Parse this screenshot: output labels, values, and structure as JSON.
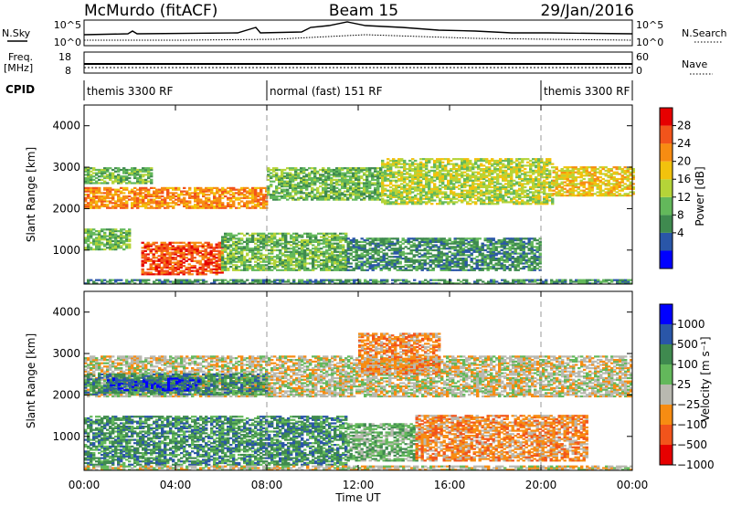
{
  "header": {
    "station": "McMurdo (fitACF)",
    "beam": "Beam 15",
    "date": "29/Jan/2016"
  },
  "top_panels": {
    "nsky_label": "N.Sky",
    "nsearch_label": "N.Search",
    "nsky_ticks": [
      "10^5",
      "10^0"
    ],
    "nsearch_ticks": [
      "10^5",
      "10^0"
    ],
    "freq_label": "Freq.",
    "freq_unit": "[MHz]",
    "freq_ticks": [
      "18",
      "8"
    ],
    "nave_label": "Nave",
    "nave_ticks": [
      "60",
      "0"
    ],
    "cpid_label": "CPID",
    "cpid_segments": [
      {
        "label": "themis 3300 RF",
        "start": 0,
        "end": 8
      },
      {
        "label": "normal (fast) 151 RF",
        "start": 8,
        "end": 20
      },
      {
        "label": "themis 3300 RF",
        "start": 20,
        "end": 24
      }
    ]
  },
  "x_axis": {
    "label": "Time UT",
    "ticks": [
      "00:00",
      "04:00",
      "08:00",
      "12:00",
      "16:00",
      "20:00",
      "00:00"
    ],
    "range_hours": [
      0,
      24
    ]
  },
  "chart_data": [
    {
      "type": "heatmap",
      "name": "power",
      "ylabel": "Slant Range [km]",
      "yticks": [
        "4000",
        "3000",
        "2000",
        "1000"
      ],
      "ytick_values": [
        4000,
        3000,
        2000,
        1000
      ],
      "ylim": [
        180,
        4500
      ],
      "xlim": [
        0,
        24
      ],
      "colorbar_label": "Power [dB]",
      "colorbar_ticks": [
        "28",
        "24",
        "20",
        "16",
        "12",
        "8",
        "4"
      ],
      "colorbar_colors": [
        "#0000ff",
        "#2a56a8",
        "#3f8a4f",
        "#63b85b",
        "#b5d438",
        "#f2c20d",
        "#f78c12",
        "#f2541b",
        "#e60000"
      ],
      "bands": [
        {
          "t0": 0.0,
          "t1": 8.0,
          "r0": 2000,
          "r1": 2500,
          "level": 6
        },
        {
          "t0": 8.0,
          "t1": 13.0,
          "r0": 2200,
          "r1": 3000,
          "level": 3
        },
        {
          "t0": 13.0,
          "t1": 20.5,
          "r0": 2100,
          "r1": 3200,
          "level": 4
        },
        {
          "t0": 20.5,
          "t1": 24.0,
          "r0": 2300,
          "r1": 3000,
          "level": 5
        },
        {
          "t0": 0.0,
          "t1": 3.0,
          "r0": 2600,
          "r1": 3000,
          "level": 3
        },
        {
          "t0": 0.0,
          "t1": 2.0,
          "r0": 1000,
          "r1": 1500,
          "level": 3
        },
        {
          "t0": 2.5,
          "t1": 6.0,
          "r0": 400,
          "r1": 1200,
          "level": 7
        },
        {
          "t0": 6.0,
          "t1": 11.5,
          "r0": 500,
          "r1": 1400,
          "level": 3
        },
        {
          "t0": 11.5,
          "t1": 20.0,
          "r0": 500,
          "r1": 1300,
          "level": 2
        },
        {
          "t0": 0.0,
          "t1": 24.0,
          "r0": 180,
          "r1": 300,
          "level": 2
        }
      ]
    },
    {
      "type": "heatmap",
      "name": "velocity",
      "ylabel": "Slant Range [km]",
      "yticks": [
        "4000",
        "3000",
        "2000",
        "1000"
      ],
      "ytick_values": [
        4000,
        3000,
        2000,
        1000
      ],
      "ylim": [
        180,
        4500
      ],
      "xlim": [
        0,
        24
      ],
      "colorbar_label": "Velocity [m s⁻¹]",
      "colorbar_ticks": [
        "1000",
        "500",
        "100",
        "25",
        "−25",
        "−100",
        "−500",
        "−1000"
      ],
      "colorbar_colors": [
        "#e60000",
        "#f2541b",
        "#f78c12",
        "#b9b9b0",
        "#63b85b",
        "#3f8a4f",
        "#2a56a8",
        "#0000ff"
      ],
      "bands": [
        {
          "t0": 0.0,
          "t1": 24.0,
          "r0": 1950,
          "r1": 2950,
          "level": 3
        },
        {
          "t0": 0.0,
          "t1": 8.0,
          "r0": 2000,
          "r1": 2500,
          "level": 5
        },
        {
          "t0": 1.0,
          "t1": 5.0,
          "r0": 2100,
          "r1": 2400,
          "level": 6
        },
        {
          "t0": 0.0,
          "t1": 11.5,
          "r0": 300,
          "r1": 1500,
          "level": 5
        },
        {
          "t0": 11.5,
          "t1": 14.5,
          "r0": 400,
          "r1": 1300,
          "level": 4
        },
        {
          "t0": 14.5,
          "t1": 22.0,
          "r0": 400,
          "r1": 1500,
          "level": 2
        },
        {
          "t0": 12.0,
          "t1": 15.5,
          "r0": 2500,
          "r1": 3500,
          "level": 2
        },
        {
          "t0": 0.0,
          "t1": 24.0,
          "r0": 180,
          "r1": 300,
          "level": 3
        }
      ]
    }
  ]
}
